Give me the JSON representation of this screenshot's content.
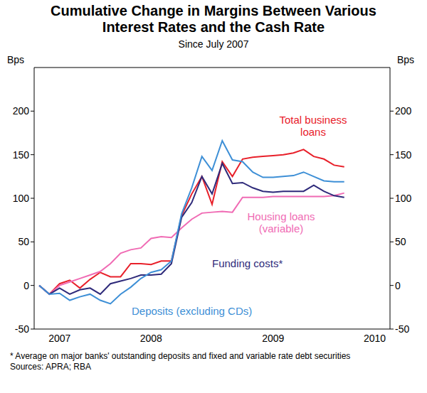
{
  "chart_data": {
    "type": "line",
    "title": "Cumulative Change in Margins Between Various Interest Rates and the Cash Rate",
    "subtitle": "Since July 2007",
    "y_label": "Bps",
    "y2_label": "Bps",
    "categories": [
      null,
      null,
      "2007",
      null,
      null,
      null,
      null,
      null,
      null,
      null,
      null,
      "2008",
      null,
      null,
      null,
      null,
      null,
      null,
      null,
      null,
      null,
      null,
      null,
      "2009",
      null,
      null,
      null,
      null,
      null,
      null,
      null,
      null,
      null,
      "2010",
      null
    ],
    "series": [
      {
        "name": "Total business loans",
        "color": "#e8202a",
        "values": [
          0,
          -10,
          2,
          6,
          -3,
          7,
          15,
          10,
          10,
          25,
          25,
          24,
          28,
          28,
          80,
          105,
          125,
          93,
          142,
          125,
          145,
          147,
          148,
          149,
          150,
          152,
          156,
          148,
          145,
          138,
          136,
          null,
          null,
          null,
          null
        ]
      },
      {
        "name": "Housing loans (variable)",
        "color": "#f06bb4",
        "values": [
          0,
          -10,
          0,
          4,
          8,
          12,
          16,
          25,
          37,
          41,
          43,
          54,
          56,
          55,
          66,
          76,
          83,
          84,
          85,
          84,
          101,
          101,
          101,
          102,
          102,
          102,
          102,
          102,
          102,
          103,
          106,
          null,
          null,
          null,
          null
        ]
      },
      {
        "name": "Funding costs*",
        "color": "#2e2a7a",
        "values": [
          0,
          -10,
          -3,
          -10,
          -5,
          -3,
          -10,
          2,
          5,
          8,
          12,
          12,
          13,
          25,
          78,
          95,
          125,
          105,
          140,
          117,
          118,
          112,
          108,
          107,
          108,
          108,
          108,
          115,
          108,
          103,
          101,
          null,
          null,
          null,
          null
        ]
      },
      {
        "name": "Deposits (excluding CDs)",
        "color": "#3d8fd6",
        "values": [
          0,
          -10,
          -9,
          -17,
          -13,
          -10,
          -17,
          -21,
          -10,
          -2,
          8,
          15,
          18,
          28,
          82,
          112,
          148,
          132,
          166,
          144,
          142,
          130,
          124,
          124,
          125,
          126,
          130,
          125,
          120,
          119,
          119,
          null,
          null,
          null,
          null
        ]
      }
    ],
    "ylim": [
      -50,
      250
    ],
    "yticks": [
      -50,
      0,
      50,
      100,
      150,
      200
    ],
    "y2lim": [
      -50,
      250
    ],
    "y2ticks": [
      -50,
      0,
      50,
      100,
      150,
      200
    ],
    "grid": false,
    "notes": [
      "*  Average on major banks' outstanding deposits and fixed and variable rate debt securities",
      "Sources: APRA; RBA"
    ]
  }
}
